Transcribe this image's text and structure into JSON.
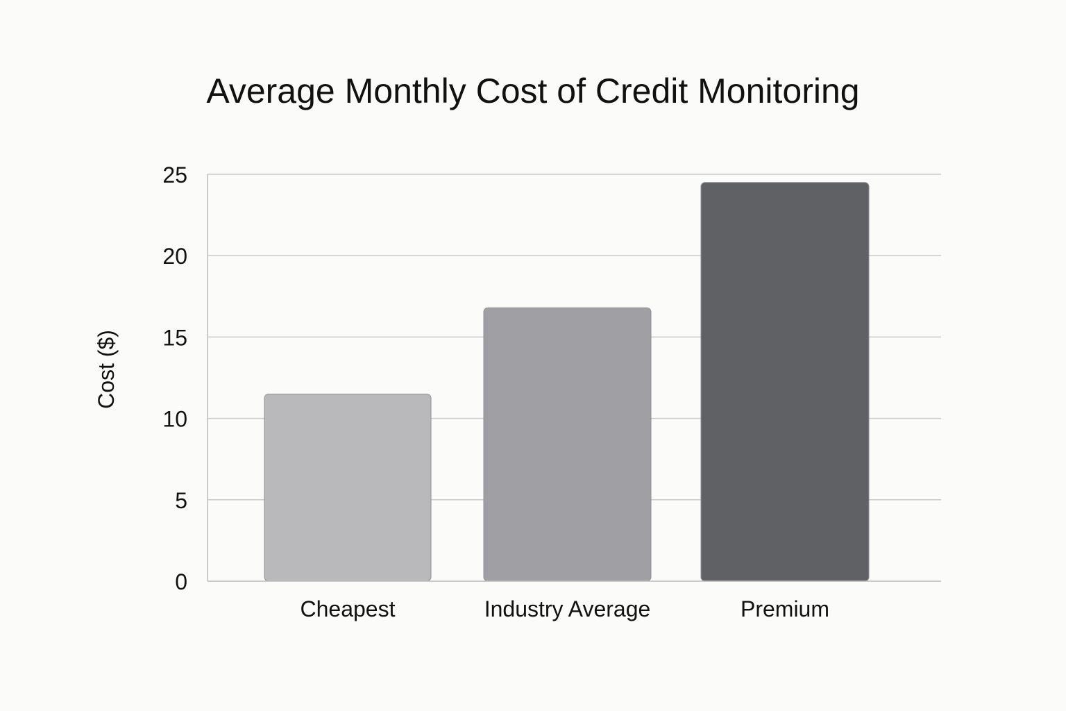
{
  "chart_data": {
    "type": "bar",
    "title": "Average Monthly Cost of Credit Monitoring",
    "xlabel": "",
    "ylabel": "Cost ($)",
    "categories": [
      "Cheapest",
      "Industry Average",
      "Premium"
    ],
    "values": [
      11.5,
      16.8,
      24.5
    ],
    "ylim": [
      0,
      25
    ],
    "yticks": [
      "0",
      "5",
      "10",
      "15",
      "20",
      "25"
    ],
    "grid": true,
    "legend": "none",
    "colors": [
      "#b9b9bb",
      "#a0a0a4",
      "#606165"
    ]
  }
}
